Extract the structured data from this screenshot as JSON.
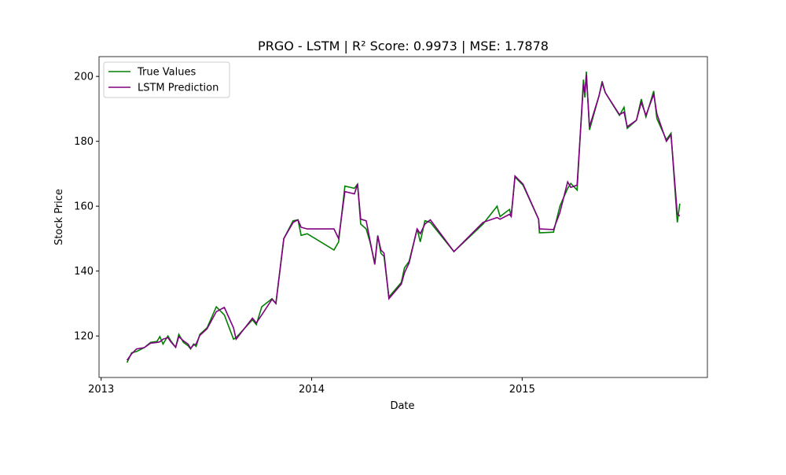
{
  "chart_data": {
    "type": "line",
    "title": "PRGO - LSTM | R² Score: 0.9973 | MSE: 1.7878",
    "x_label": "Date",
    "y_label": "Stock Price",
    "x": [
      2013.123,
      2013.145,
      2013.168,
      2013.205,
      2013.235,
      2013.265,
      2013.279,
      2013.294,
      2013.317,
      2013.331,
      2013.354,
      2013.369,
      2013.391,
      2013.413,
      2013.425,
      2013.439,
      2013.451,
      2013.469,
      2013.503,
      2013.547,
      2013.585,
      2013.629,
      2013.641,
      2013.719,
      2013.737,
      2013.763,
      2013.812,
      2013.83,
      2013.868,
      2013.912,
      2013.935,
      2013.95,
      2013.979,
      2014.106,
      2014.128,
      2014.158,
      2014.203,
      2014.218,
      2014.233,
      2014.259,
      2014.277,
      2014.3,
      2014.314,
      2014.329,
      2014.344,
      2014.367,
      2014.426,
      2014.441,
      2014.463,
      2014.501,
      2014.516,
      2014.538,
      2014.564,
      2014.676,
      2014.814,
      2014.881,
      2014.895,
      2014.94,
      2014.948,
      2014.966,
      2015.004,
      2015.078,
      2015.082,
      2015.149,
      2015.179,
      2015.216,
      2015.231,
      2015.261,
      2015.291,
      2015.298,
      2015.305,
      2015.32,
      2015.365,
      2015.38,
      2015.395,
      2015.462,
      2015.484,
      2015.499,
      2015.543,
      2015.566,
      2015.588,
      2015.625,
      2015.64,
      2015.685,
      2015.707,
      2015.737,
      2015.749
    ],
    "series": [
      {
        "name": "True Values",
        "color": "#008000",
        "values": [
          111.8,
          114.8,
          115.2,
          116.4,
          118.0,
          118.3,
          119.8,
          117.5,
          120.0,
          118.5,
          116.5,
          120.5,
          118.0,
          117.0,
          116.0,
          117.5,
          116.8,
          120.5,
          122.5,
          129.0,
          126.5,
          119.0,
          119.5,
          125.0,
          123.5,
          129.0,
          131.5,
          130.0,
          150.0,
          155.5,
          155.8,
          151.0,
          151.5,
          146.5,
          149.0,
          166.2,
          165.5,
          166.8,
          154.5,
          153.0,
          149.0,
          142.5,
          151.0,
          145.5,
          144.5,
          132.0,
          136.5,
          141.0,
          143.0,
          153.0,
          149.0,
          155.5,
          155.0,
          146.0,
          154.5,
          160.0,
          156.8,
          159.0,
          157.0,
          169.0,
          166.5,
          156.0,
          151.8,
          152.0,
          160.0,
          165.5,
          167.0,
          165.0,
          199.0,
          193.5,
          201.5,
          183.5,
          194.0,
          198.5,
          195.0,
          188.0,
          190.5,
          184.0,
          186.5,
          193.0,
          187.5,
          195.5,
          187.0,
          180.5,
          182.5,
          155.0,
          160.8
        ]
      },
      {
        "name": "LSTM Prediction",
        "color": "#800080",
        "values": [
          112.5,
          114.5,
          116.0,
          116.4,
          117.8,
          118.0,
          118.2,
          119.0,
          119.5,
          118.2,
          116.5,
          119.8,
          118.5,
          117.5,
          116.2,
          117.2,
          117.5,
          120.2,
          122.2,
          127.5,
          128.8,
          122.5,
          119.0,
          125.5,
          124.0,
          126.5,
          131.3,
          130.0,
          150.0,
          155.0,
          155.8,
          153.5,
          153.0,
          153.0,
          150.0,
          164.5,
          163.8,
          166.8,
          156.0,
          155.5,
          149.5,
          142.0,
          150.8,
          146.5,
          145.5,
          131.5,
          136.0,
          139.5,
          142.5,
          153.0,
          151.5,
          154.5,
          155.8,
          146.0,
          155.0,
          156.5,
          156.0,
          157.5,
          156.8,
          169.3,
          166.8,
          156.0,
          153.0,
          152.8,
          158.0,
          167.5,
          165.8,
          166.5,
          197.5,
          195.0,
          200.5,
          184.5,
          194.0,
          198.0,
          195.0,
          188.2,
          189.0,
          184.5,
          186.5,
          192.0,
          188.0,
          194.5,
          188.5,
          180.0,
          182.0,
          157.5,
          157.0
        ]
      }
    ],
    "xlim": [
      2012.99,
      2015.88
    ],
    "xticks": [
      2013,
      2014,
      2015
    ],
    "ylim": [
      107.2,
      206.1
    ],
    "yticks": [
      120,
      140,
      160,
      180,
      200
    ],
    "legend": "upper left"
  }
}
